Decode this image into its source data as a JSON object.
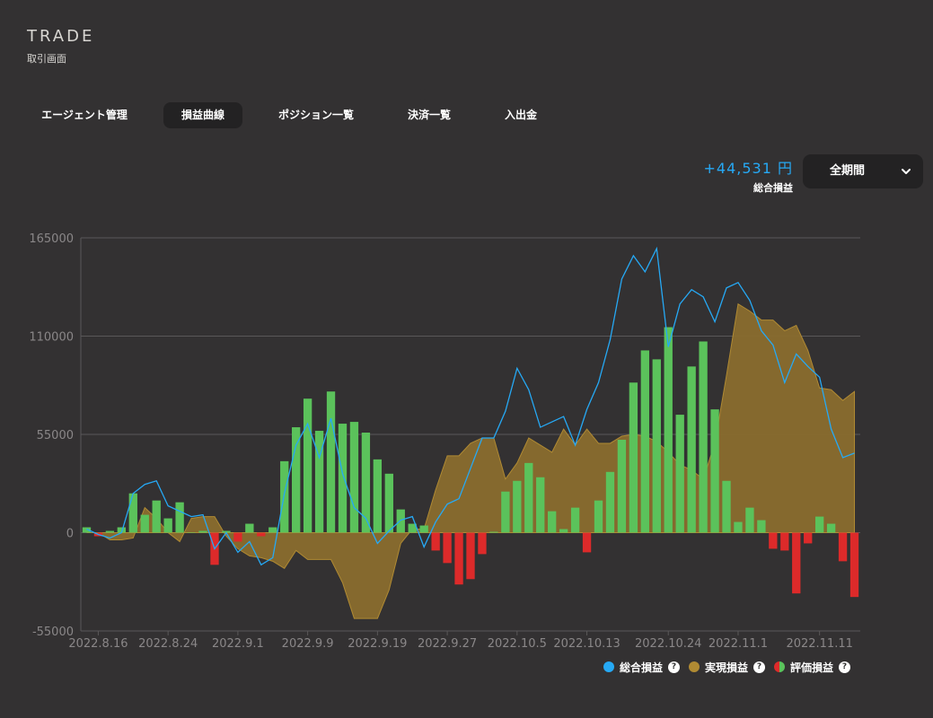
{
  "header": {
    "title": "TRADE",
    "subtitle": "取引画面"
  },
  "tabs": [
    {
      "label": "エージェント管理",
      "active": false
    },
    {
      "label": "損益曲線",
      "active": true
    },
    {
      "label": "ポジション一覧",
      "active": false
    },
    {
      "label": "決済一覧",
      "active": false
    },
    {
      "label": "入出金",
      "active": false
    }
  ],
  "summary": {
    "value": "+44,531 円",
    "label": "総合損益"
  },
  "period": {
    "selected": "全期間"
  },
  "legend": {
    "total": "総合損益",
    "realized": "実現損益",
    "unrealized": "評価損益",
    "help": "?"
  },
  "colors": {
    "background": "#333132",
    "total_line": "#26a9f5",
    "realized_fill": "#8a6d2e",
    "realized_edge": "#b08a33",
    "unrealized_pos": "#5bc25b",
    "unrealized_neg": "#dd2a2a",
    "grid": "#5a5859",
    "axis_text": "#8a8788"
  },
  "chart_data": {
    "type": "bar+line+area",
    "ylim": [
      -55000,
      165000
    ],
    "yticks": [
      -55000,
      0,
      55000,
      110000,
      165000
    ],
    "ytick_labels": [
      "-55000",
      "0",
      "55000",
      "110000",
      "165000"
    ],
    "xticks": [
      {
        "label": "2022.8.16",
        "index": 1
      },
      {
        "label": "2022.8.24",
        "index": 7
      },
      {
        "label": "2022.9.1",
        "index": 13
      },
      {
        "label": "2022.9.9",
        "index": 19
      },
      {
        "label": "2022.9.19",
        "index": 25
      },
      {
        "label": "2022.9.27",
        "index": 31
      },
      {
        "label": "2022.10.5",
        "index": 37
      },
      {
        "label": "2022.10.13",
        "index": 43
      },
      {
        "label": "2022.10.24",
        "index": 50
      },
      {
        "label": "2022.11.1",
        "index": 56
      },
      {
        "label": "2022.11.11",
        "index": 63
      }
    ],
    "series": [
      {
        "name": "評価損益",
        "type": "bar",
        "values": [
          3000,
          -2000,
          1000,
          3000,
          22000,
          10000,
          18000,
          8000,
          17000,
          0,
          1000,
          -18000,
          1000,
          -5000,
          5000,
          -2000,
          3000,
          40000,
          59000,
          75000,
          57000,
          79000,
          61000,
          62000,
          56000,
          41000,
          33000,
          13000,
          5000,
          4000,
          -10000,
          -17000,
          -29000,
          -26000,
          -12000,
          500,
          23000,
          29000,
          39000,
          31000,
          12000,
          2000,
          14000,
          -11000,
          18000,
          34000,
          52000,
          84000,
          102000,
          97000,
          115000,
          66000,
          93000,
          107000,
          69000,
          29000,
          6000,
          14000,
          7000,
          -9000,
          -10000,
          -34000,
          -6000,
          9000,
          5000,
          -16000,
          -36000
        ]
      },
      {
        "name": "実現損益",
        "type": "area",
        "values": [
          0,
          0,
          -4000,
          -4000,
          -3000,
          14000,
          8000,
          0,
          -5000,
          8000,
          9000,
          9000,
          -2000,
          -9000,
          -13000,
          -14000,
          -16000,
          -20000,
          -10000,
          -15000,
          -15000,
          -15000,
          -28000,
          -48000,
          -48000,
          -48000,
          -32000,
          -6000,
          2000,
          2000,
          24000,
          43000,
          43000,
          50000,
          53000,
          53000,
          30000,
          39000,
          53000,
          49000,
          45000,
          58000,
          49000,
          58000,
          50000,
          50000,
          54000,
          55000,
          54000,
          51000,
          45000,
          38000,
          35000,
          30000,
          50000,
          88000,
          128000,
          124000,
          119000,
          119000,
          113000,
          116000,
          102000,
          81000,
          80000,
          74000,
          79000
        ]
      },
      {
        "name": "総合損益",
        "type": "line",
        "values": [
          2000,
          -1000,
          -3000,
          0,
          22000,
          27000,
          29000,
          15000,
          12000,
          9000,
          10000,
          -9000,
          0,
          -11000,
          -5000,
          -18000,
          -14000,
          22000,
          49000,
          61000,
          42000,
          64000,
          33000,
          14000,
          8000,
          -6000,
          1000,
          7000,
          9000,
          -8000,
          6000,
          16000,
          19000,
          36000,
          53000,
          53000,
          68000,
          92000,
          80000,
          59000,
          62000,
          65000,
          49000,
          69000,
          84000,
          108000,
          142000,
          155000,
          146000,
          159000,
          104000,
          128000,
          136000,
          132000,
          118000,
          137000,
          140000,
          130000,
          113000,
          105000,
          84000,
          100000,
          93000,
          87000,
          58000,
          42000,
          44531
        ]
      }
    ],
    "title": "",
    "xlabel": "",
    "ylabel": ""
  }
}
